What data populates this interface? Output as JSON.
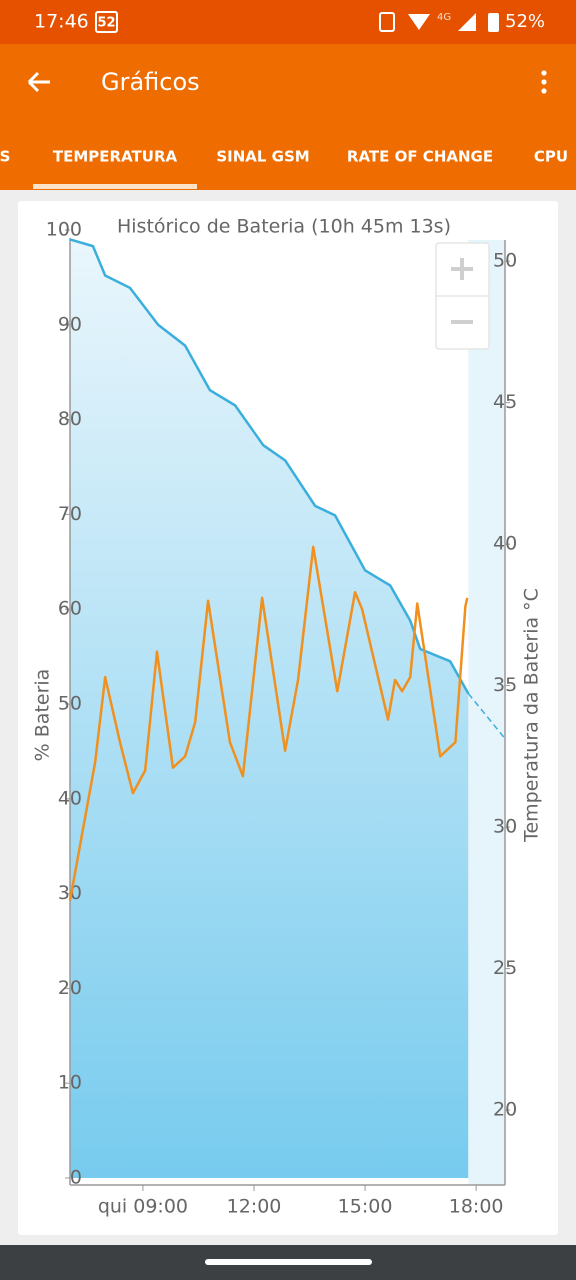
{
  "status_bar": {
    "time": "17:46",
    "notification": "52",
    "network": "4G",
    "battery": "52%"
  },
  "app_bar": {
    "title": "Gráficos"
  },
  "tabs": {
    "items": [
      "S",
      "TEMPERATURA",
      "SINAL GSM",
      "RATE OF CHANGE",
      "CPU"
    ],
    "active": 1
  },
  "chart_data": {
    "type": "line",
    "title": "Histórico de Bateria (10h 45m 13s)",
    "y_label": "% Bateria",
    "y2_label": "Temperatura da Bateria °C",
    "xlim": [
      7.03,
      18.78
    ],
    "xticks": [
      {
        "value": 9,
        "label": "qui 09:00"
      },
      {
        "value": 12,
        "label": "12:00"
      },
      {
        "value": 15,
        "label": "15:00"
      },
      {
        "value": 18,
        "label": "18:00"
      }
    ],
    "ylim": [
      0,
      100
    ],
    "yticks": [
      0,
      10,
      20,
      30,
      40,
      50,
      60,
      70,
      80,
      90,
      100
    ],
    "y2lim": [
      17.6,
      51.1
    ],
    "y2ticks": [
      20,
      25,
      30,
      35,
      40,
      45,
      50
    ],
    "series": [
      {
        "name": "% Bateria",
        "color": "#3aaedd",
        "x": [
          7.03,
          7.65,
          7.98,
          8.65,
          9.41,
          10.14,
          10.81,
          11.49,
          12.25,
          12.84,
          13.65,
          14.19,
          15.0,
          15.68,
          16.22,
          16.49,
          17.3,
          17.79
        ],
        "values": [
          99,
          98.3,
          95.2,
          93.9,
          90,
          87.8,
          83.1,
          81.5,
          77.3,
          75.7,
          70.9,
          69.9,
          64.1,
          62.5,
          58.8,
          55.8,
          54.5,
          51.1
        ]
      },
      {
        "name": "Temperatura da Bateria °C",
        "color": "#f0901e",
        "axis": "y2",
        "x": [
          7.03,
          7.71,
          7.98,
          8.38,
          8.73,
          9.06,
          9.38,
          9.81,
          10.14,
          10.41,
          10.76,
          11.35,
          11.7,
          12.22,
          12.84,
          13.19,
          13.6,
          14.25,
          14.73,
          14.92,
          15.62,
          15.81,
          16.0,
          16.22,
          16.41,
          17.03,
          17.44,
          17.71,
          17.76
        ],
        "values": [
          27.4,
          32.3,
          35.3,
          33,
          31.2,
          32,
          36.2,
          32.1,
          32.5,
          33.7,
          38,
          33,
          31.8,
          38.1,
          32.7,
          35.2,
          39.9,
          34.8,
          38.3,
          37.7,
          33.8,
          35.2,
          34.8,
          35.3,
          37.9,
          32.5,
          33,
          37.8,
          38.1
        ]
      }
    ]
  }
}
